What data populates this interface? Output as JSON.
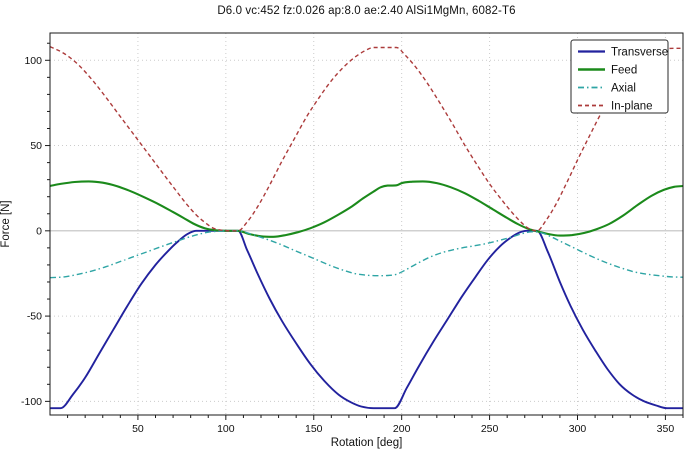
{
  "chart_data": {
    "type": "line",
    "title": "D6.0 vc:452 fz:0.026 ap:8.0 ae:2.40 AlSi1MgMn, 6082-T6",
    "xlabel": "Rotation [deg]",
    "ylabel": "Force [N]",
    "xlim": [
      0,
      360
    ],
    "ylim": [
      -108,
      116
    ],
    "xticks": [
      50,
      100,
      150,
      200,
      250,
      300,
      350
    ],
    "yticks": [
      -100,
      -50,
      0,
      50,
      100
    ],
    "x_minor_step": 10,
    "y_minor_step": 10,
    "grid": "dotted",
    "zero_line": true,
    "legend_position": "top-right",
    "series": [
      {
        "name": "Transverse",
        "color": "#22229E",
        "style": "solid",
        "width": 1.9,
        "points": [
          [
            0,
            -104
          ],
          [
            6,
            -104
          ],
          [
            13,
            -96
          ],
          [
            20,
            -86
          ],
          [
            28,
            -72
          ],
          [
            36,
            -58
          ],
          [
            44,
            -44
          ],
          [
            52,
            -31
          ],
          [
            60,
            -20
          ],
          [
            67,
            -12
          ],
          [
            73,
            -6
          ],
          [
            78,
            -2
          ],
          [
            83,
            0
          ],
          [
            95,
            0
          ],
          [
            107,
            0
          ],
          [
            112,
            -11
          ],
          [
            118,
            -25
          ],
          [
            125,
            -40
          ],
          [
            132,
            -53
          ],
          [
            140,
            -66
          ],
          [
            148,
            -78
          ],
          [
            156,
            -88
          ],
          [
            164,
            -96
          ],
          [
            171,
            -100.5
          ],
          [
            177,
            -103
          ],
          [
            184,
            -104
          ],
          [
            190,
            -104
          ],
          [
            196,
            -104
          ],
          [
            203,
            -92
          ],
          [
            210,
            -79
          ],
          [
            218,
            -65
          ],
          [
            226,
            -52
          ],
          [
            234,
            -39
          ],
          [
            242,
            -27
          ],
          [
            249,
            -17
          ],
          [
            256,
            -9
          ],
          [
            262,
            -4
          ],
          [
            267,
            -1
          ],
          [
            271,
            0
          ],
          [
            277,
            0
          ],
          [
            283,
            -12
          ],
          [
            290,
            -30
          ],
          [
            296,
            -44
          ],
          [
            303,
            -58
          ],
          [
            310,
            -70
          ],
          [
            317,
            -81
          ],
          [
            324,
            -90
          ],
          [
            331,
            -96
          ],
          [
            338,
            -100
          ],
          [
            345,
            -102.5
          ],
          [
            351,
            -104
          ],
          [
            360,
            -104
          ]
        ]
      },
      {
        "name": "Feed",
        "color": "#1B8A1B",
        "style": "solid",
        "width": 2.1,
        "points": [
          [
            0,
            26.3
          ],
          [
            6,
            27.5
          ],
          [
            14,
            28.6
          ],
          [
            22,
            29
          ],
          [
            30,
            28.2
          ],
          [
            38,
            26.2
          ],
          [
            46,
            23.2
          ],
          [
            54,
            19.5
          ],
          [
            62,
            15.5
          ],
          [
            70,
            11
          ],
          [
            76,
            7.5
          ],
          [
            82,
            4
          ],
          [
            88,
            1.5
          ],
          [
            93,
            0.4
          ],
          [
            100,
            0
          ],
          [
            107,
            0
          ],
          [
            113,
            -1.8
          ],
          [
            120,
            -3.2
          ],
          [
            127,
            -3.5
          ],
          [
            134,
            -2.5
          ],
          [
            141,
            -0.8
          ],
          [
            148,
            1.5
          ],
          [
            156,
            5
          ],
          [
            164,
            9.5
          ],
          [
            172,
            14.5
          ],
          [
            178,
            19
          ],
          [
            184,
            23
          ],
          [
            188,
            25.5
          ],
          [
            192,
            26.5
          ],
          [
            197,
            26.7
          ],
          [
            200,
            28
          ],
          [
            206,
            28.8
          ],
          [
            212,
            29
          ],
          [
            220,
            28
          ],
          [
            228,
            25.5
          ],
          [
            236,
            22
          ],
          [
            244,
            17.5
          ],
          [
            252,
            12.5
          ],
          [
            260,
            7.5
          ],
          [
            266,
            4
          ],
          [
            272,
            1.2
          ],
          [
            277,
            -0.3
          ],
          [
            283,
            -1.8
          ],
          [
            290,
            -2.8
          ],
          [
            297,
            -2.5
          ],
          [
            304,
            -1.2
          ],
          [
            311,
            1
          ],
          [
            318,
            4
          ],
          [
            326,
            9
          ],
          [
            334,
            15
          ],
          [
            342,
            20.5
          ],
          [
            349,
            24
          ],
          [
            355,
            25.8
          ],
          [
            360,
            26.3
          ]
        ]
      },
      {
        "name": "Axial",
        "color": "#2FA5A5",
        "style": "dashdot",
        "width": 1.4,
        "points": [
          [
            0,
            -27.5
          ],
          [
            8,
            -27
          ],
          [
            16,
            -25.5
          ],
          [
            24,
            -23.5
          ],
          [
            32,
            -21
          ],
          [
            40,
            -18
          ],
          [
            48,
            -15
          ],
          [
            56,
            -12
          ],
          [
            64,
            -9
          ],
          [
            71,
            -6.5
          ],
          [
            78,
            -4
          ],
          [
            84,
            -2.2
          ],
          [
            90,
            -0.8
          ],
          [
            96,
            -0.2
          ],
          [
            103,
            0
          ],
          [
            107,
            0
          ],
          [
            114,
            -1.8
          ],
          [
            122,
            -4.5
          ],
          [
            130,
            -7.5
          ],
          [
            138,
            -11
          ],
          [
            146,
            -14.5
          ],
          [
            154,
            -18
          ],
          [
            161,
            -21
          ],
          [
            168,
            -23.5
          ],
          [
            174,
            -25.2
          ],
          [
            180,
            -26
          ],
          [
            186,
            -26.3
          ],
          [
            192,
            -26.2
          ],
          [
            197,
            -25.5
          ],
          [
            203,
            -22.5
          ],
          [
            210,
            -18.5
          ],
          [
            217,
            -15
          ],
          [
            224,
            -12.5
          ],
          [
            232,
            -10.5
          ],
          [
            240,
            -9
          ],
          [
            248,
            -7.5
          ],
          [
            256,
            -5.5
          ],
          [
            263,
            -3.5
          ],
          [
            269,
            -1.5
          ],
          [
            274,
            -0.6
          ],
          [
            279,
            -1
          ],
          [
            285,
            -3.5
          ],
          [
            292,
            -7
          ],
          [
            300,
            -11
          ],
          [
            308,
            -15
          ],
          [
            316,
            -18.5
          ],
          [
            324,
            -21.5
          ],
          [
            332,
            -24
          ],
          [
            340,
            -25.5
          ],
          [
            348,
            -26.5
          ],
          [
            354,
            -27
          ],
          [
            360,
            -27.2
          ]
        ]
      },
      {
        "name": "In-plane",
        "color": "#AC3B3B",
        "style": "dashed",
        "width": 1.4,
        "points": [
          [
            0,
            108
          ],
          [
            8,
            104
          ],
          [
            16,
            97.5
          ],
          [
            24,
            88.5
          ],
          [
            32,
            78
          ],
          [
            40,
            67
          ],
          [
            48,
            56
          ],
          [
            56,
            45
          ],
          [
            64,
            34
          ],
          [
            71,
            24.5
          ],
          [
            77,
            16.5
          ],
          [
            83,
            9.5
          ],
          [
            88,
            5
          ],
          [
            93,
            1.5
          ],
          [
            98,
            0.3
          ],
          [
            103,
            0
          ],
          [
            107,
            0
          ],
          [
            112,
            5
          ],
          [
            118,
            14
          ],
          [
            125,
            27
          ],
          [
            132,
            41
          ],
          [
            139,
            54
          ],
          [
            146,
            67
          ],
          [
            153,
            78
          ],
          [
            160,
            88
          ],
          [
            167,
            96
          ],
          [
            173,
            101.5
          ],
          [
            179,
            105.5
          ],
          [
            184,
            107.5
          ],
          [
            190,
            107.5
          ],
          [
            197,
            107.5
          ],
          [
            202,
            103
          ],
          [
            208,
            96
          ],
          [
            215,
            86
          ],
          [
            222,
            74.5
          ],
          [
            229,
            62.5
          ],
          [
            236,
            50
          ],
          [
            243,
            38.5
          ],
          [
            250,
            27.5
          ],
          [
            257,
            18
          ],
          [
            263,
            10.5
          ],
          [
            268,
            5
          ],
          [
            272,
            1.5
          ],
          [
            277,
            0
          ],
          [
            282,
            6
          ],
          [
            288,
            16
          ],
          [
            294,
            28.5
          ],
          [
            300,
            41.5
          ],
          [
            307,
            56
          ],
          [
            314,
            70
          ],
          [
            321,
            82
          ],
          [
            328,
            92
          ],
          [
            335,
            99.5
          ],
          [
            342,
            104
          ],
          [
            349,
            106.5
          ],
          [
            355,
            107
          ],
          [
            360,
            107
          ]
        ]
      }
    ],
    "colors": {
      "frame": "#1a1a1a",
      "grid": "#cccccc",
      "zero_line": "#c0c0c0",
      "background": "#ffffff",
      "text": "#111111",
      "legend_border": "#2a2a2a",
      "legend_fill": "#ffffff"
    }
  }
}
